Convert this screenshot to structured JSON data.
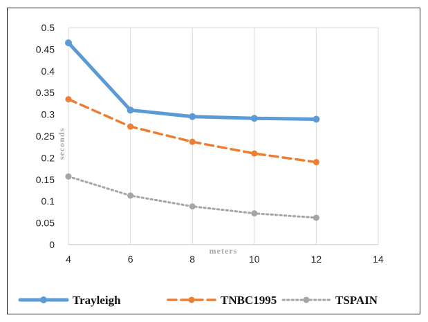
{
  "chart_data": {
    "type": "line",
    "xlabel": "meters",
    "ylabel": "seconds",
    "xlim": [
      4,
      14
    ],
    "ylim": [
      0,
      0.5
    ],
    "x_ticks": [
      "4",
      "6",
      "8",
      "10",
      "12",
      "14"
    ],
    "y_ticks": [
      "0",
      "0.05",
      "0.1",
      "0.15",
      "0.2",
      "0.25",
      "0.3",
      "0.35",
      "0.4",
      "0.45",
      "0.5"
    ],
    "grid": "vertical",
    "legend_position": "bottom",
    "x": [
      4,
      6,
      8,
      10,
      12
    ],
    "series": [
      {
        "name": "Trayleigh",
        "values": [
          0.465,
          0.31,
          0.295,
          0.291,
          0.289
        ],
        "color": "#5b9bd5",
        "style": "solid"
      },
      {
        "name": "TNBC1995",
        "values": [
          0.335,
          0.272,
          0.237,
          0.21,
          0.19
        ],
        "color": "#ed7d31",
        "style": "dashed"
      },
      {
        "name": "TSPAIN",
        "values": [
          0.157,
          0.113,
          0.088,
          0.072,
          0.062
        ],
        "color": "#a5a5a5",
        "style": "dotted"
      }
    ]
  }
}
